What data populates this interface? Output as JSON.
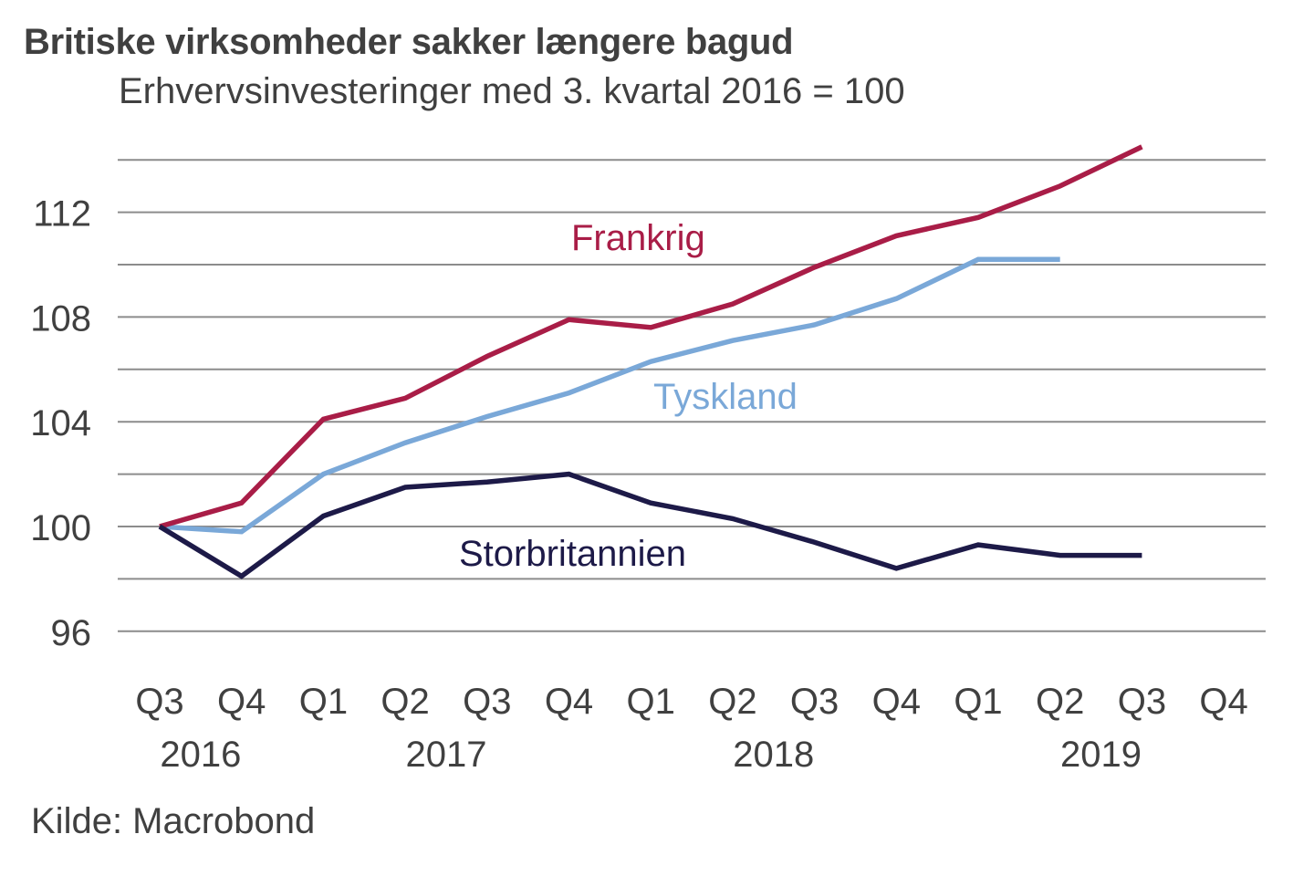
{
  "header": {
    "title": "Britiske virksomheder sakker længere bagud",
    "subtitle": "Erhvervsinvesteringer med 3. kvartal 2016 = 100"
  },
  "footer": {
    "source": "Kilde: Macrobond"
  },
  "chart_data": {
    "type": "line",
    "title": "Britiske virksomheder sakker længere bagud",
    "subtitle": "Erhvervsinvesteringer med 3. kvartal 2016 = 100",
    "xlabel": "",
    "ylabel": "",
    "ylim": [
      94,
      114
    ],
    "yticks": [
      96,
      100,
      104,
      108,
      112
    ],
    "gridlines_at": [
      96,
      98,
      100,
      102,
      104,
      106,
      108,
      110,
      112,
      114
    ],
    "grid": true,
    "legend": "inline labels",
    "categories": [
      "Q3",
      "Q4",
      "Q1",
      "Q2",
      "Q3",
      "Q4",
      "Q1",
      "Q2",
      "Q3",
      "Q4",
      "Q1",
      "Q2",
      "Q3",
      "Q4"
    ],
    "year_labels": [
      {
        "label": "2016",
        "span": [
          0,
          1
        ]
      },
      {
        "label": "2017",
        "span": [
          2,
          5
        ]
      },
      {
        "label": "2018",
        "span": [
          6,
          9
        ]
      },
      {
        "label": "2019",
        "span": [
          10,
          13
        ]
      }
    ],
    "series": [
      {
        "name": "Frankrig",
        "color": "#A91D47",
        "values": [
          100.0,
          100.9,
          104.1,
          104.9,
          106.5,
          107.9,
          107.6,
          108.5,
          109.9,
          111.1,
          111.8,
          113.0,
          114.5
        ]
      },
      {
        "name": "Tyskland",
        "color": "#7AA8D8",
        "values": [
          100.0,
          99.8,
          102.0,
          103.2,
          104.2,
          105.1,
          106.3,
          107.1,
          107.7,
          108.7,
          110.2,
          110.2
        ]
      },
      {
        "name": "Storbritannien",
        "color": "#1D1A48",
        "values": [
          100.0,
          98.1,
          100.4,
          101.5,
          101.7,
          102.0,
          100.9,
          100.3,
          99.4,
          98.4,
          99.3,
          98.9,
          98.9
        ]
      }
    ],
    "source": "Kilde: Macrobond"
  }
}
